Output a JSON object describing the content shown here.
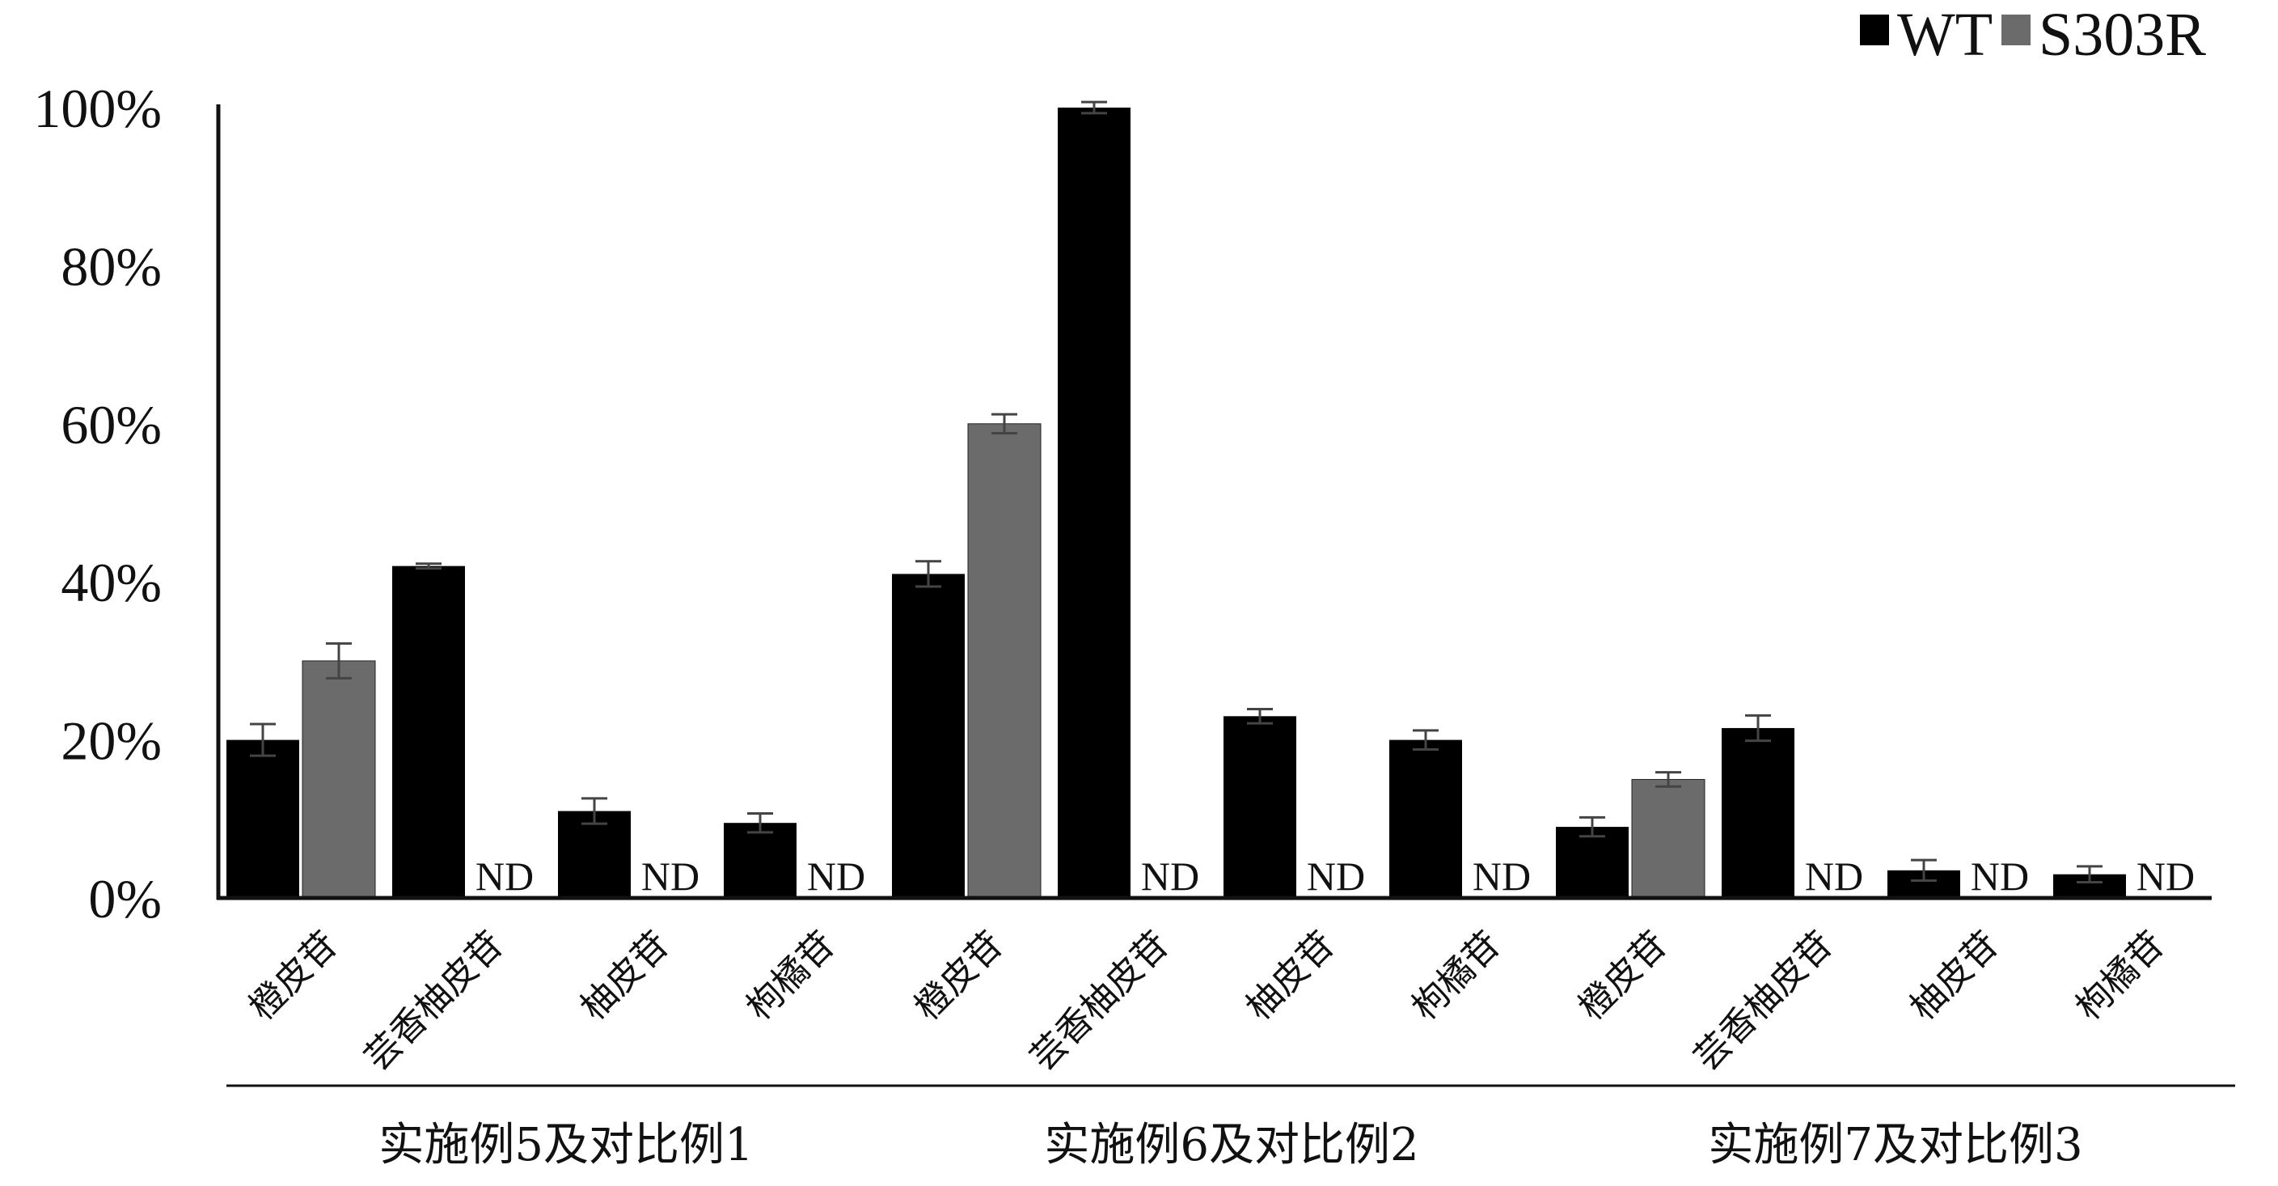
{
  "chart_data": {
    "type": "bar",
    "ylim": [
      0,
      100
    ],
    "yticks": [
      "0%",
      "20%",
      "40%",
      "60%",
      "80%",
      "100%"
    ],
    "legend_position": "top-right",
    "series": [
      {
        "name": "WT",
        "color": "#000000"
      },
      {
        "name": "S303R",
        "color": "#6b6b6b"
      }
    ],
    "missing_label": "ND",
    "groups": [
      {
        "label": "实施例5及对比例1",
        "categories": [
          {
            "name": "橙皮苷",
            "WT": 20,
            "S303R": 30,
            "WT_err": 2,
            "S303R_err": 2.2
          },
          {
            "name": "芸香柚皮苷",
            "WT": 42,
            "S303R": null,
            "WT_err": 0.3,
            "S303R_err": 0
          },
          {
            "name": "柚皮苷",
            "WT": 11,
            "S303R": null,
            "WT_err": 1.6,
            "S303R_err": 0
          },
          {
            "name": "枸橘苷",
            "WT": 9.5,
            "S303R": null,
            "WT_err": 1.2,
            "S303R_err": 0
          }
        ]
      },
      {
        "label": "实施例6及对比例2",
        "categories": [
          {
            "name": "橙皮苷",
            "WT": 41,
            "S303R": 60,
            "WT_err": 1.6,
            "S303R_err": 1.2
          },
          {
            "name": "芸香柚皮苷",
            "WT": 100,
            "S303R": null,
            "WT_err": 0.7,
            "S303R_err": 0
          },
          {
            "name": "柚皮苷",
            "WT": 23,
            "S303R": null,
            "WT_err": 0.9,
            "S303R_err": 0
          },
          {
            "name": "枸橘苷",
            "WT": 20,
            "S303R": null,
            "WT_err": 1.2,
            "S303R_err": 0
          }
        ]
      },
      {
        "label": "实施例7及对比例3",
        "categories": [
          {
            "name": "橙皮苷",
            "WT": 9,
            "S303R": 15,
            "WT_err": 1.2,
            "S303R_err": 0.9
          },
          {
            "name": "芸香柚皮苷",
            "WT": 21.5,
            "S303R": null,
            "WT_err": 1.6,
            "S303R_err": 0
          },
          {
            "name": "柚皮苷",
            "WT": 3.5,
            "S303R": null,
            "WT_err": 1.3,
            "S303R_err": 0
          },
          {
            "name": "枸橘苷",
            "WT": 3,
            "S303R": null,
            "WT_err": 1,
            "S303R_err": 0
          }
        ]
      }
    ]
  }
}
